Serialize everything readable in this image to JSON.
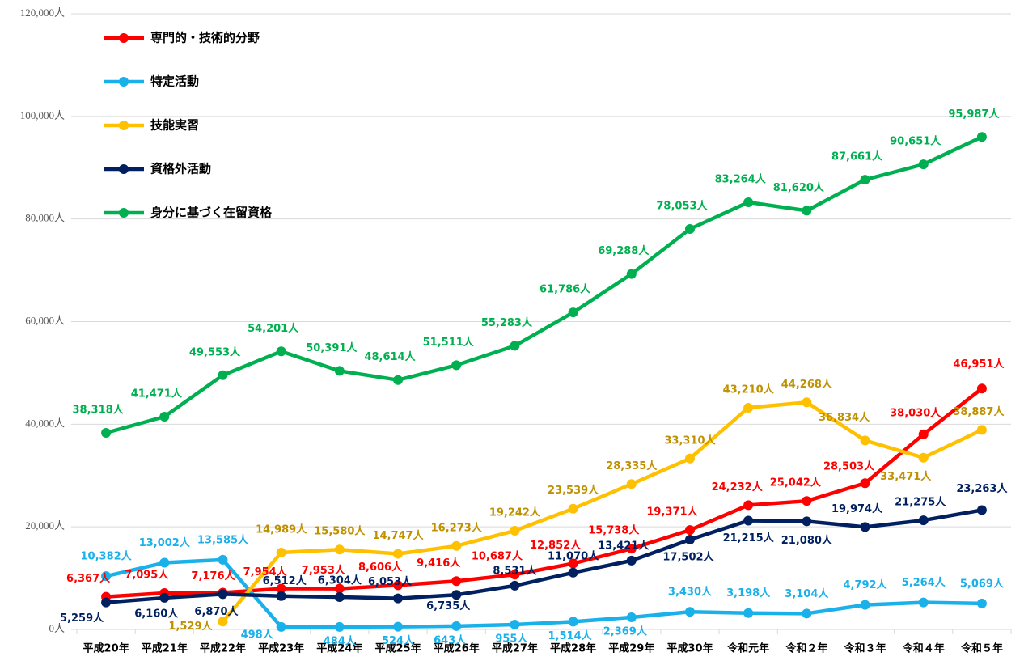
{
  "chart_data": {
    "type": "line",
    "categories": [
      "平成20年",
      "平成21年",
      "平成22年",
      "平成23年",
      "平成24年",
      "平成25年",
      "平成26年",
      "平成27年",
      "平成28年",
      "平成29年",
      "平成30年",
      "令和元年",
      "令和２年",
      "令和３年",
      "令和４年",
      "令和５年"
    ],
    "ylim": [
      0,
      120000
    ],
    "yticks": [
      {
        "value": 0,
        "label": "0人"
      },
      {
        "value": 20000,
        "label": "20,000人"
      },
      {
        "value": 40000,
        "label": "40,000人"
      },
      {
        "value": 60000,
        "label": "60,000人"
      },
      {
        "value": 80000,
        "label": "80,000人"
      },
      {
        "value": 100000,
        "label": "100,000人"
      },
      {
        "value": 120000,
        "label": "120,000人"
      }
    ],
    "grid": true,
    "legend": "top-left",
    "series": [
      {
        "name": "専門的・技術的分野",
        "color": "#ff0000",
        "values": [
          6367,
          7095,
          7176,
          7954,
          7953,
          8606,
          9416,
          10687,
          12852,
          15738,
          19371,
          24232,
          25042,
          28503,
          38030,
          46951
        ],
        "value_labels": [
          "6,367人",
          "7,095人",
          "7,176人",
          "7,954人",
          "7,953人",
          "8,606人",
          "9,416人",
          "10,687人",
          "12,852人",
          "15,738人",
          "19,371人",
          "24,232人",
          "25,042人",
          "28,503人",
          "38,030人",
          "46,951人"
        ]
      },
      {
        "name": "特定活動",
        "color": "#1ab0ea",
        "values": [
          10382,
          13002,
          13585,
          498,
          484,
          524,
          643,
          955,
          1514,
          2369,
          3430,
          3198,
          3104,
          4792,
          5264,
          5069
        ],
        "value_labels": [
          "10,382人",
          "13,002人",
          "13,585人",
          "498人",
          "484人",
          "524人",
          "643人",
          "955人",
          "1,514人",
          "2,369人",
          "3,430人",
          "3,198人",
          "3,104人",
          "4,792人",
          "5,264人",
          "5,069人"
        ]
      },
      {
        "name": "技能実習",
        "color": "#ffc000",
        "values": [
          null,
          null,
          1529,
          14989,
          15580,
          14747,
          16273,
          19242,
          23539,
          28335,
          33310,
          43210,
          44268,
          36834,
          33471,
          38887
        ],
        "value_labels": [
          null,
          null,
          "1,529人",
          "14,989人",
          "15,580人",
          "14,747人",
          "16,273人",
          "19,242人",
          "23,539人",
          "28,335人",
          "33,310人",
          "43,210人",
          "44,268人",
          "36,834人",
          "33,471人",
          "38,887人"
        ]
      },
      {
        "name": "資格外活動",
        "color": "#002060",
        "values": [
          5259,
          6160,
          6870,
          6512,
          6304,
          6053,
          6735,
          8531,
          11070,
          13421,
          17502,
          21215,
          21080,
          19974,
          21275,
          23263
        ],
        "value_labels": [
          "5,259人",
          "6,160人",
          "6,870人",
          "6,512人",
          "6,304人",
          "6,053人",
          "6,735人",
          "8,531人",
          "11,070人",
          "13,421人",
          "17,502人",
          "21,215人",
          "21,080人",
          "19,974人",
          "21,275人",
          "23,263人"
        ]
      },
      {
        "name": "身分に基づく在留資格",
        "color": "#00b050",
        "values": [
          38318,
          41471,
          49553,
          54201,
          50391,
          48614,
          51511,
          55283,
          61786,
          69288,
          78053,
          83264,
          81620,
          87661,
          90651,
          95987
        ],
        "value_labels": [
          "38,318人",
          "41,471人",
          "49,553人",
          "54,201人",
          "50,391人",
          "48,614人",
          "51,511人",
          "55,283人",
          "61,786人",
          "69,288人",
          "78,053人",
          "83,264人",
          "81,620人",
          "87,661人",
          "90,651人",
          "95,987人"
        ]
      }
    ]
  }
}
